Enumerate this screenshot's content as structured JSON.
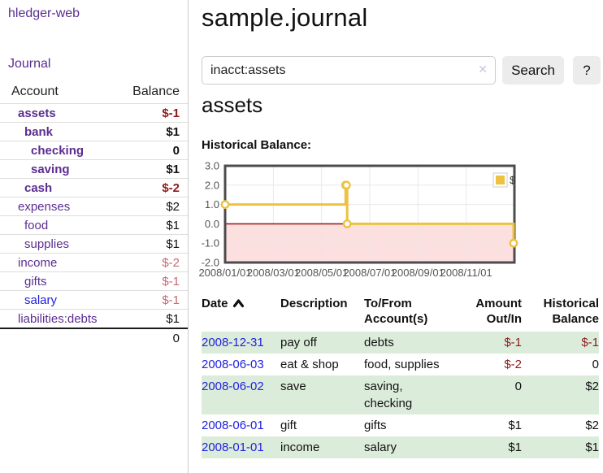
{
  "theme": {
    "link_visited_purple": "#5b2d90",
    "link_blue": "#2222dd",
    "negative_strong": "#8f1a1a",
    "negative_soft": "#c46a73",
    "row_green": "#dcecdb"
  },
  "sidebar": {
    "brand": "hledger-web",
    "journal_link": "Journal",
    "accounts": {
      "headers": {
        "account": "Account",
        "balance": "Balance"
      },
      "rows": [
        {
          "name": "assets",
          "balance": "$-1",
          "indent": 1,
          "bold": true,
          "neg": true
        },
        {
          "name": "bank",
          "balance": "$1",
          "indent": 2,
          "bold": true,
          "neg": false
        },
        {
          "name": "checking",
          "balance": "0",
          "indent": 3,
          "bold": true,
          "neg": false
        },
        {
          "name": "saving",
          "balance": "$1",
          "indent": 3,
          "bold": true,
          "neg": false
        },
        {
          "name": "cash",
          "balance": "$-2",
          "indent": 2,
          "bold": true,
          "neg": true
        },
        {
          "name": "expenses",
          "balance": "$2",
          "indent": 1,
          "bold": false,
          "neg": false
        },
        {
          "name": "food",
          "balance": "$1",
          "indent": 2,
          "bold": false,
          "neg": false
        },
        {
          "name": "supplies",
          "balance": "$1",
          "indent": 2,
          "bold": false,
          "neg": false
        },
        {
          "name": "income",
          "balance": "$-2",
          "indent": 1,
          "bold": false,
          "neg": true
        },
        {
          "name": "gifts",
          "balance": "$-1",
          "indent": 2,
          "bold": false,
          "neg": true
        },
        {
          "name": "salary",
          "balance": "$-1",
          "indent": 2,
          "bold": false,
          "neg": true,
          "unvisited": true
        },
        {
          "name": "liabilities:debts",
          "balance": "$1",
          "indent": 1,
          "bold": false,
          "neg": false
        }
      ],
      "total": "0"
    }
  },
  "main": {
    "title": "sample.journal",
    "search": {
      "value": "inacct:assets",
      "clear_icon": "✕",
      "button_label": "Search",
      "help_label": "?"
    },
    "account_heading": "assets",
    "chart_label": "Historical Balance:"
  },
  "chart_data": {
    "type": "line",
    "title": "Historical Balance",
    "step": true,
    "series": [
      {
        "name": "$",
        "color": "#edc240",
        "points": [
          [
            "2008-01-01",
            1
          ],
          [
            "2008-06-01",
            2
          ],
          [
            "2008-06-02",
            2
          ],
          [
            "2008-06-03",
            0
          ],
          [
            "2008-12-31",
            -1
          ]
        ]
      }
    ],
    "xlim": [
      "2008-01-01",
      "2009-01-01"
    ],
    "ylim": [
      -2,
      3
    ],
    "x_ticks": [
      "2008/01/01",
      "2008/03/01",
      "2008/05/01",
      "2008/07/01",
      "2008/09/01",
      "2008/11/01"
    ],
    "y_ticks": [
      3,
      2,
      1,
      0,
      -1,
      -2
    ],
    "legend": {
      "position": "top-right",
      "label": "$"
    },
    "grid": true,
    "colors": {
      "grid": "#e8e8e8",
      "border": "#4c4c4c",
      "zero_line": "#a01c1c",
      "negative_region": "#fcdfdf",
      "tick_text": "#545454"
    }
  },
  "register": {
    "headers": [
      "Date",
      "Description",
      "To/From Account(s)",
      "Amount Out/In",
      "Historical Balance"
    ],
    "rows": [
      {
        "date": "2008-12-31",
        "description": "pay off",
        "accounts": "debts",
        "amount": "$-1",
        "balance": "$-1"
      },
      {
        "date": "2008-06-03",
        "description": "eat & shop",
        "accounts": "food, supplies",
        "amount": "$-2",
        "balance": "0"
      },
      {
        "date": "2008-06-02",
        "description": "save",
        "accounts": "saving,\nchecking",
        "amount": "0",
        "balance": "$2"
      },
      {
        "date": "2008-06-01",
        "description": "gift",
        "accounts": "gifts",
        "amount": "$1",
        "balance": "$2"
      },
      {
        "date": "2008-01-01",
        "description": "income",
        "accounts": "salary",
        "amount": "$1",
        "balance": "$1"
      }
    ]
  }
}
